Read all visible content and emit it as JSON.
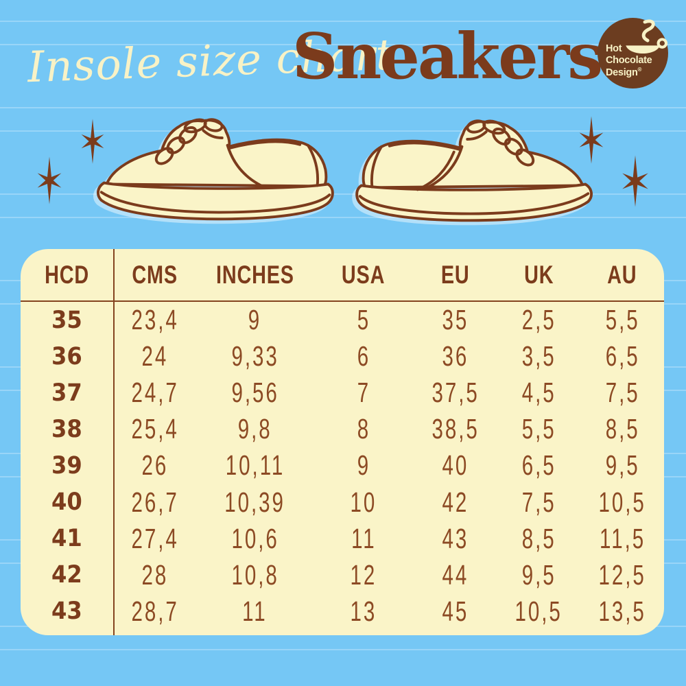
{
  "header": {
    "script_title": "Insole size chart",
    "main_title": "Sneakers"
  },
  "logo": {
    "line1": "Hot",
    "line2": "Chocolate",
    "line3": "Design",
    "registered": "®"
  },
  "colors": {
    "background_blue": "#75C7F5",
    "stripe_blue": "#8FD4F9",
    "panel_cream": "#FAF4C8",
    "brown_dark": "#7B3B1C",
    "brown_value": "#8C4A24",
    "cream_text": "#F8F2C6",
    "logo_brown": "#6C3D20"
  },
  "chart_data": {
    "type": "table",
    "title": "Insole size chart — Sneakers",
    "columns": [
      "HCD",
      "CMS",
      "INCHES",
      "USA",
      "EU",
      "UK",
      "AU"
    ],
    "rows": [
      [
        "35",
        "23,4",
        "9",
        "5",
        "35",
        "2,5",
        "5,5"
      ],
      [
        "36",
        "24",
        "9,33",
        "6",
        "36",
        "3,5",
        "6,5"
      ],
      [
        "37",
        "24,7",
        "9,56",
        "7",
        "37,5",
        "4,5",
        "7,5"
      ],
      [
        "38",
        "25,4",
        "9,8",
        "8",
        "38,5",
        "5,5",
        "8,5"
      ],
      [
        "39",
        "26",
        "10,11",
        "9",
        "40",
        "6,5",
        "9,5"
      ],
      [
        "40",
        "26,7",
        "10,39",
        "10",
        "42",
        "7,5",
        "10,5"
      ],
      [
        "41",
        "27,4",
        "10,6",
        "11",
        "43",
        "8,5",
        "11,5"
      ],
      [
        "42",
        "28",
        "10,8",
        "12",
        "44",
        "9,5",
        "12,5"
      ],
      [
        "43",
        "28,7",
        "11",
        "13",
        "45",
        "10,5",
        "13,5"
      ]
    ]
  }
}
